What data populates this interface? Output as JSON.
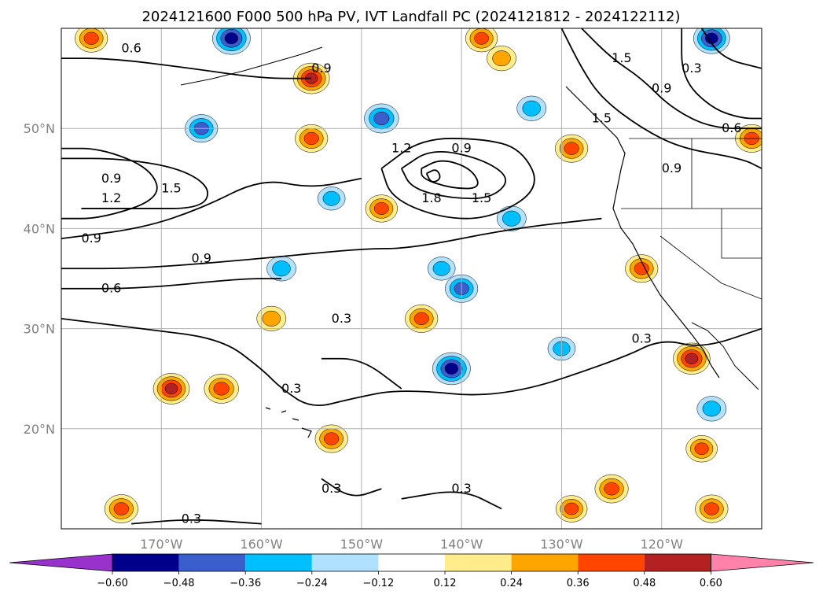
{
  "chart_data": {
    "type": "map-contour",
    "title": "2024121600 F000 500 hPa PV, IVT Landfall PC (2024121812 - 2024122112)",
    "lon_range": [
      -180,
      -110
    ],
    "lat_range": [
      10,
      60
    ],
    "grid": true,
    "lon_ticks": [
      -170,
      -160,
      -150,
      -140,
      -130,
      -120
    ],
    "lon_tick_labels": [
      "170°W",
      "160°W",
      "150°W",
      "140°W",
      "130°W",
      "120°W"
    ],
    "lat_ticks": [
      20,
      30,
      40,
      50
    ],
    "lat_tick_labels": [
      "20°N",
      "30°N",
      "40°N",
      "50°N"
    ],
    "colorbar": {
      "levels": [
        -0.6,
        -0.48,
        -0.36,
        -0.24,
        -0.12,
        0.12,
        0.24,
        0.36,
        0.48,
        0.6
      ],
      "tick_labels": [
        "−0.60",
        "−0.48",
        "−0.36",
        "−0.24",
        "−0.12",
        "0.12",
        "0.24",
        "0.36",
        "0.48",
        "0.60"
      ],
      "colors": [
        "#9932cc",
        "#00008b",
        "#3a5fcd",
        "#00bfff",
        "#b0e2ff",
        "#ffffff",
        "#ffec8b",
        "#ffa500",
        "#ff4500",
        "#b22222",
        "#ff82ab"
      ],
      "extend": "both"
    },
    "contour_labels": [
      {
        "text": "0.6",
        "lon": -173,
        "lat": 58
      },
      {
        "text": "0.9",
        "lon": -154,
        "lat": 56
      },
      {
        "text": "1.5",
        "lon": -124,
        "lat": 57
      },
      {
        "text": "0.9",
        "lon": -120,
        "lat": 54
      },
      {
        "text": "0.3",
        "lon": -117,
        "lat": 56
      },
      {
        "text": "0.6",
        "lon": -113,
        "lat": 50
      },
      {
        "text": "1.5",
        "lon": -126,
        "lat": 51
      },
      {
        "text": "0.9",
        "lon": -175,
        "lat": 45
      },
      {
        "text": "1.2",
        "lon": -175,
        "lat": 43
      },
      {
        "text": "1.5",
        "lon": -169,
        "lat": 44
      },
      {
        "text": "0.9",
        "lon": -140,
        "lat": 48
      },
      {
        "text": "1.2",
        "lon": -146,
        "lat": 48
      },
      {
        "text": "1.8",
        "lon": -143,
        "lat": 43
      },
      {
        "text": "1.5",
        "lon": -138,
        "lat": 43
      },
      {
        "text": "0.9",
        "lon": -119,
        "lat": 46
      },
      {
        "text": "0.9",
        "lon": -177,
        "lat": 39
      },
      {
        "text": "0.9",
        "lon": -166,
        "lat": 37
      },
      {
        "text": "0.6",
        "lon": -175,
        "lat": 34
      },
      {
        "text": "0.3",
        "lon": -152,
        "lat": 31
      },
      {
        "text": "0.3",
        "lon": -122,
        "lat": 29
      },
      {
        "text": "0.3",
        "lon": -157,
        "lat": 24
      },
      {
        "text": "0.3",
        "lon": -153,
        "lat": 14
      },
      {
        "text": "0.3",
        "lon": -140,
        "lat": 14
      },
      {
        "text": "0.3",
        "lon": -167,
        "lat": 11
      }
    ],
    "contour_lines": [
      {
        "level": 0.6,
        "points": [
          [
            -180,
            57
          ],
          [
            -175,
            57
          ],
          [
            -167,
            56
          ],
          [
            -160,
            55
          ],
          [
            -155,
            55
          ]
        ]
      },
      {
        "level": 0.6,
        "points": [
          [
            -180,
            34
          ],
          [
            -172,
            34
          ],
          [
            -162,
            35
          ],
          [
            -158,
            35
          ]
        ]
      },
      {
        "level": 0.6,
        "points": [
          [
            -180,
            36
          ],
          [
            -172,
            36
          ],
          [
            -160,
            37
          ],
          [
            -150,
            38
          ],
          [
            -145,
            38
          ],
          [
            -135,
            40
          ],
          [
            -126,
            41
          ]
        ]
      },
      {
        "level": 0.9,
        "points": [
          [
            -180,
            39
          ],
          [
            -172,
            40
          ],
          [
            -166,
            42
          ],
          [
            -160,
            45
          ],
          [
            -155,
            44
          ],
          [
            -150,
            45
          ]
        ]
      },
      {
        "level": 0.3,
        "points": [
          [
            -180,
            31
          ],
          [
            -172,
            30
          ],
          [
            -164,
            29
          ],
          [
            -160,
            26
          ],
          [
            -158,
            24
          ],
          [
            -155,
            22
          ],
          [
            -151,
            23
          ],
          [
            -146,
            24
          ],
          [
            -136,
            23
          ],
          [
            -124,
            27
          ],
          [
            -120,
            29
          ],
          [
            -116,
            28
          ],
          [
            -110,
            30
          ]
        ]
      },
      {
        "level": 0.3,
        "points": [
          [
            -154,
            27
          ],
          [
            -150,
            27
          ],
          [
            -146,
            24
          ]
        ]
      },
      {
        "level": 0.3,
        "points": [
          [
            -154,
            15
          ],
          [
            -151,
            13
          ],
          [
            -148,
            14
          ]
        ]
      },
      {
        "level": 0.3,
        "points": [
          [
            -146,
            13
          ],
          [
            -140,
            14
          ],
          [
            -136,
            12
          ]
        ]
      },
      {
        "level": 0.3,
        "points": [
          [
            -173,
            10.5
          ],
          [
            -167,
            11
          ],
          [
            -160,
            10.5
          ]
        ]
      },
      {
        "level": 1.5,
        "points": [
          [
            -180,
            47
          ],
          [
            -174,
            47
          ],
          [
            -168,
            46
          ],
          [
            -165,
            44
          ],
          [
            -166,
            42
          ],
          [
            -172,
            42
          ],
          [
            -178,
            42
          ]
        ]
      },
      {
        "level": 1.2,
        "points": [
          [
            -180,
            48
          ],
          [
            -176,
            48
          ],
          [
            -171,
            46
          ],
          [
            -170,
            43
          ],
          [
            -176,
            41
          ],
          [
            -180,
            41
          ]
        ]
      },
      {
        "level": 0.9,
        "points": [
          [
            -148,
            46
          ],
          [
            -144,
            49
          ],
          [
            -138,
            49
          ],
          [
            -134,
            48
          ],
          [
            -132,
            44
          ],
          [
            -137,
            41
          ],
          [
            -142,
            41
          ],
          [
            -147,
            43
          ],
          [
            -148,
            46
          ]
        ]
      },
      {
        "level": 1.2,
        "points": [
          [
            -146,
            46
          ],
          [
            -143,
            48
          ],
          [
            -138,
            47
          ],
          [
            -135,
            45
          ],
          [
            -137,
            43
          ],
          [
            -141,
            43
          ],
          [
            -145,
            44
          ],
          [
            -146,
            46
          ]
        ]
      },
      {
        "level": 1.5,
        "points": [
          [
            -144,
            46
          ],
          [
            -142,
            47
          ],
          [
            -139,
            46
          ],
          [
            -138,
            44
          ],
          [
            -141,
            44
          ],
          [
            -144,
            45
          ],
          [
            -144,
            46
          ]
        ]
      },
      {
        "level": 1.8,
        "points": [
          [
            -143.5,
            45.5
          ],
          [
            -142.5,
            46
          ],
          [
            -142,
            45
          ],
          [
            -143,
            44.5
          ],
          [
            -143.5,
            45.5
          ]
        ]
      },
      {
        "level": 0.9,
        "points": [
          [
            -130,
            60
          ],
          [
            -128,
            56
          ],
          [
            -126,
            53
          ],
          [
            -122,
            50
          ],
          [
            -118,
            48
          ],
          [
            -112,
            47
          ],
          [
            -110,
            46
          ]
        ]
      },
      {
        "level": 1.5,
        "points": [
          [
            -128,
            60
          ],
          [
            -125,
            57
          ],
          [
            -122,
            55
          ],
          [
            -119,
            52
          ],
          [
            -115,
            50
          ],
          [
            -110,
            50
          ]
        ]
      },
      {
        "level": 0.6,
        "points": [
          [
            -118,
            60
          ],
          [
            -118,
            55
          ],
          [
            -115,
            52
          ],
          [
            -112,
            51
          ],
          [
            -110,
            51
          ]
        ]
      },
      {
        "level": 0.3,
        "points": [
          [
            -116,
            60
          ],
          [
            -114,
            57
          ],
          [
            -110,
            56
          ]
        ]
      }
    ],
    "pv_anomaly_patches": [
      {
        "lon": -177,
        "lat": 59,
        "value": 0.4
      },
      {
        "lon": -163,
        "lat": 59,
        "value": -0.55
      },
      {
        "lon": -155,
        "lat": 55,
        "value": 0.5
      },
      {
        "lon": -155,
        "lat": 49,
        "value": 0.4
      },
      {
        "lon": -148,
        "lat": 51,
        "value": -0.45
      },
      {
        "lon": -166,
        "lat": 50,
        "value": -0.4
      },
      {
        "lon": -153,
        "lat": 43,
        "value": -0.25
      },
      {
        "lon": -148,
        "lat": 42,
        "value": 0.38
      },
      {
        "lon": -138,
        "lat": 59,
        "value": 0.38
      },
      {
        "lon": -136,
        "lat": 57,
        "value": 0.3
      },
      {
        "lon": -133,
        "lat": 52,
        "value": -0.3
      },
      {
        "lon": -129,
        "lat": 48,
        "value": 0.4
      },
      {
        "lon": -135,
        "lat": 41,
        "value": -0.3
      },
      {
        "lon": -158,
        "lat": 36,
        "value": -0.3
      },
      {
        "lon": -142,
        "lat": 36,
        "value": -0.25
      },
      {
        "lon": -140,
        "lat": 34,
        "value": -0.4
      },
      {
        "lon": -144,
        "lat": 31,
        "value": 0.4
      },
      {
        "lon": -159,
        "lat": 31,
        "value": 0.3
      },
      {
        "lon": -141,
        "lat": 26,
        "value": -0.55
      },
      {
        "lon": -169,
        "lat": 24,
        "value": 0.5
      },
      {
        "lon": -164,
        "lat": 24,
        "value": 0.45
      },
      {
        "lon": -153,
        "lat": 19,
        "value": 0.4
      },
      {
        "lon": -117,
        "lat": 27,
        "value": 0.52
      },
      {
        "lon": -122,
        "lat": 36,
        "value": 0.4
      },
      {
        "lon": -115,
        "lat": 59,
        "value": -0.5
      },
      {
        "lon": -111,
        "lat": 49,
        "value": 0.4
      },
      {
        "lon": -174,
        "lat": 12,
        "value": 0.42
      },
      {
        "lon": -125,
        "lat": 14,
        "value": 0.42
      },
      {
        "lon": -129,
        "lat": 12,
        "value": 0.36
      },
      {
        "lon": -115,
        "lat": 12,
        "value": 0.4
      },
      {
        "lon": -116,
        "lat": 18,
        "value": 0.36
      },
      {
        "lon": -115,
        "lat": 22,
        "value": -0.3
      },
      {
        "lon": -130,
        "lat": 28,
        "value": -0.25
      }
    ]
  }
}
